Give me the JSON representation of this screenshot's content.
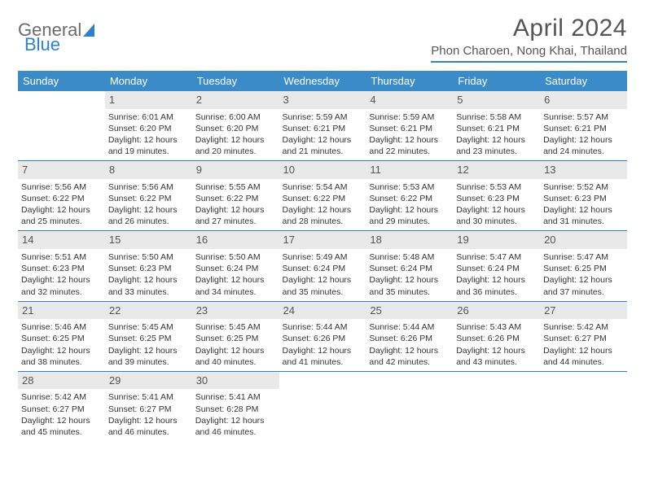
{
  "logo": {
    "word1": "General",
    "word2": "Blue"
  },
  "title": "April 2024",
  "location": "Phon Charoen, Nong Khai, Thailand",
  "colors": {
    "header_bg": "#3b8bc9",
    "accent": "#2e82c4",
    "daynum_bg": "#e9e9e9",
    "text": "#333333",
    "title_text": "#555555"
  },
  "typography": {
    "month_title_fontsize": 30,
    "location_fontsize": 15,
    "dayheader_fontsize": 13,
    "cell_fontsize": 10.5
  },
  "layout": {
    "columns": 7,
    "rows": 5
  },
  "day_headers": [
    "Sunday",
    "Monday",
    "Tuesday",
    "Wednesday",
    "Thursday",
    "Friday",
    "Saturday"
  ],
  "weeks": [
    [
      {
        "n": "",
        "sunrise": "",
        "sunset": "",
        "daylight": ""
      },
      {
        "n": "1",
        "sunrise": "Sunrise: 6:01 AM",
        "sunset": "Sunset: 6:20 PM",
        "daylight": "Daylight: 12 hours and 19 minutes."
      },
      {
        "n": "2",
        "sunrise": "Sunrise: 6:00 AM",
        "sunset": "Sunset: 6:20 PM",
        "daylight": "Daylight: 12 hours and 20 minutes."
      },
      {
        "n": "3",
        "sunrise": "Sunrise: 5:59 AM",
        "sunset": "Sunset: 6:21 PM",
        "daylight": "Daylight: 12 hours and 21 minutes."
      },
      {
        "n": "4",
        "sunrise": "Sunrise: 5:59 AM",
        "sunset": "Sunset: 6:21 PM",
        "daylight": "Daylight: 12 hours and 22 minutes."
      },
      {
        "n": "5",
        "sunrise": "Sunrise: 5:58 AM",
        "sunset": "Sunset: 6:21 PM",
        "daylight": "Daylight: 12 hours and 23 minutes."
      },
      {
        "n": "6",
        "sunrise": "Sunrise: 5:57 AM",
        "sunset": "Sunset: 6:21 PM",
        "daylight": "Daylight: 12 hours and 24 minutes."
      }
    ],
    [
      {
        "n": "7",
        "sunrise": "Sunrise: 5:56 AM",
        "sunset": "Sunset: 6:22 PM",
        "daylight": "Daylight: 12 hours and 25 minutes."
      },
      {
        "n": "8",
        "sunrise": "Sunrise: 5:56 AM",
        "sunset": "Sunset: 6:22 PM",
        "daylight": "Daylight: 12 hours and 26 minutes."
      },
      {
        "n": "9",
        "sunrise": "Sunrise: 5:55 AM",
        "sunset": "Sunset: 6:22 PM",
        "daylight": "Daylight: 12 hours and 27 minutes."
      },
      {
        "n": "10",
        "sunrise": "Sunrise: 5:54 AM",
        "sunset": "Sunset: 6:22 PM",
        "daylight": "Daylight: 12 hours and 28 minutes."
      },
      {
        "n": "11",
        "sunrise": "Sunrise: 5:53 AM",
        "sunset": "Sunset: 6:22 PM",
        "daylight": "Daylight: 12 hours and 29 minutes."
      },
      {
        "n": "12",
        "sunrise": "Sunrise: 5:53 AM",
        "sunset": "Sunset: 6:23 PM",
        "daylight": "Daylight: 12 hours and 30 minutes."
      },
      {
        "n": "13",
        "sunrise": "Sunrise: 5:52 AM",
        "sunset": "Sunset: 6:23 PM",
        "daylight": "Daylight: 12 hours and 31 minutes."
      }
    ],
    [
      {
        "n": "14",
        "sunrise": "Sunrise: 5:51 AM",
        "sunset": "Sunset: 6:23 PM",
        "daylight": "Daylight: 12 hours and 32 minutes."
      },
      {
        "n": "15",
        "sunrise": "Sunrise: 5:50 AM",
        "sunset": "Sunset: 6:23 PM",
        "daylight": "Daylight: 12 hours and 33 minutes."
      },
      {
        "n": "16",
        "sunrise": "Sunrise: 5:50 AM",
        "sunset": "Sunset: 6:24 PM",
        "daylight": "Daylight: 12 hours and 34 minutes."
      },
      {
        "n": "17",
        "sunrise": "Sunrise: 5:49 AM",
        "sunset": "Sunset: 6:24 PM",
        "daylight": "Daylight: 12 hours and 35 minutes."
      },
      {
        "n": "18",
        "sunrise": "Sunrise: 5:48 AM",
        "sunset": "Sunset: 6:24 PM",
        "daylight": "Daylight: 12 hours and 35 minutes."
      },
      {
        "n": "19",
        "sunrise": "Sunrise: 5:47 AM",
        "sunset": "Sunset: 6:24 PM",
        "daylight": "Daylight: 12 hours and 36 minutes."
      },
      {
        "n": "20",
        "sunrise": "Sunrise: 5:47 AM",
        "sunset": "Sunset: 6:25 PM",
        "daylight": "Daylight: 12 hours and 37 minutes."
      }
    ],
    [
      {
        "n": "21",
        "sunrise": "Sunrise: 5:46 AM",
        "sunset": "Sunset: 6:25 PM",
        "daylight": "Daylight: 12 hours and 38 minutes."
      },
      {
        "n": "22",
        "sunrise": "Sunrise: 5:45 AM",
        "sunset": "Sunset: 6:25 PM",
        "daylight": "Daylight: 12 hours and 39 minutes."
      },
      {
        "n": "23",
        "sunrise": "Sunrise: 5:45 AM",
        "sunset": "Sunset: 6:25 PM",
        "daylight": "Daylight: 12 hours and 40 minutes."
      },
      {
        "n": "24",
        "sunrise": "Sunrise: 5:44 AM",
        "sunset": "Sunset: 6:26 PM",
        "daylight": "Daylight: 12 hours and 41 minutes."
      },
      {
        "n": "25",
        "sunrise": "Sunrise: 5:44 AM",
        "sunset": "Sunset: 6:26 PM",
        "daylight": "Daylight: 12 hours and 42 minutes."
      },
      {
        "n": "26",
        "sunrise": "Sunrise: 5:43 AM",
        "sunset": "Sunset: 6:26 PM",
        "daylight": "Daylight: 12 hours and 43 minutes."
      },
      {
        "n": "27",
        "sunrise": "Sunrise: 5:42 AM",
        "sunset": "Sunset: 6:27 PM",
        "daylight": "Daylight: 12 hours and 44 minutes."
      }
    ],
    [
      {
        "n": "28",
        "sunrise": "Sunrise: 5:42 AM",
        "sunset": "Sunset: 6:27 PM",
        "daylight": "Daylight: 12 hours and 45 minutes."
      },
      {
        "n": "29",
        "sunrise": "Sunrise: 5:41 AM",
        "sunset": "Sunset: 6:27 PM",
        "daylight": "Daylight: 12 hours and 46 minutes."
      },
      {
        "n": "30",
        "sunrise": "Sunrise: 5:41 AM",
        "sunset": "Sunset: 6:28 PM",
        "daylight": "Daylight: 12 hours and 46 minutes."
      },
      {
        "n": "",
        "sunrise": "",
        "sunset": "",
        "daylight": ""
      },
      {
        "n": "",
        "sunrise": "",
        "sunset": "",
        "daylight": ""
      },
      {
        "n": "",
        "sunrise": "",
        "sunset": "",
        "daylight": ""
      },
      {
        "n": "",
        "sunrise": "",
        "sunset": "",
        "daylight": ""
      }
    ]
  ]
}
